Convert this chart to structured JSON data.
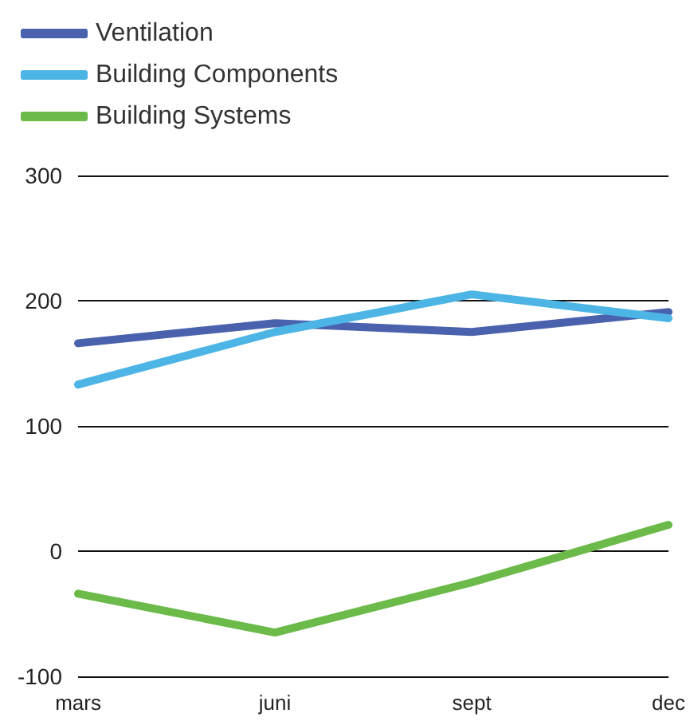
{
  "chart_data": {
    "type": "line",
    "categories": [
      "mars",
      "juni",
      "sept",
      "dec"
    ],
    "series": [
      {
        "name": "Ventilation",
        "color": "#4a62ad",
        "values": [
          166,
          182,
          175,
          191
        ]
      },
      {
        "name": "Building Components",
        "color": "#4cb5e6",
        "values": [
          133,
          175,
          205,
          186
        ]
      },
      {
        "name": "Building Systems",
        "color": "#6cbb4a",
        "values": [
          -34,
          -65,
          -25,
          21
        ]
      }
    ],
    "ylim": [
      -100,
      300
    ],
    "yticks": [
      -100,
      0,
      100,
      200,
      300
    ],
    "grid": "y",
    "legend": "top left",
    "marker": "none",
    "line_style": "solid"
  }
}
